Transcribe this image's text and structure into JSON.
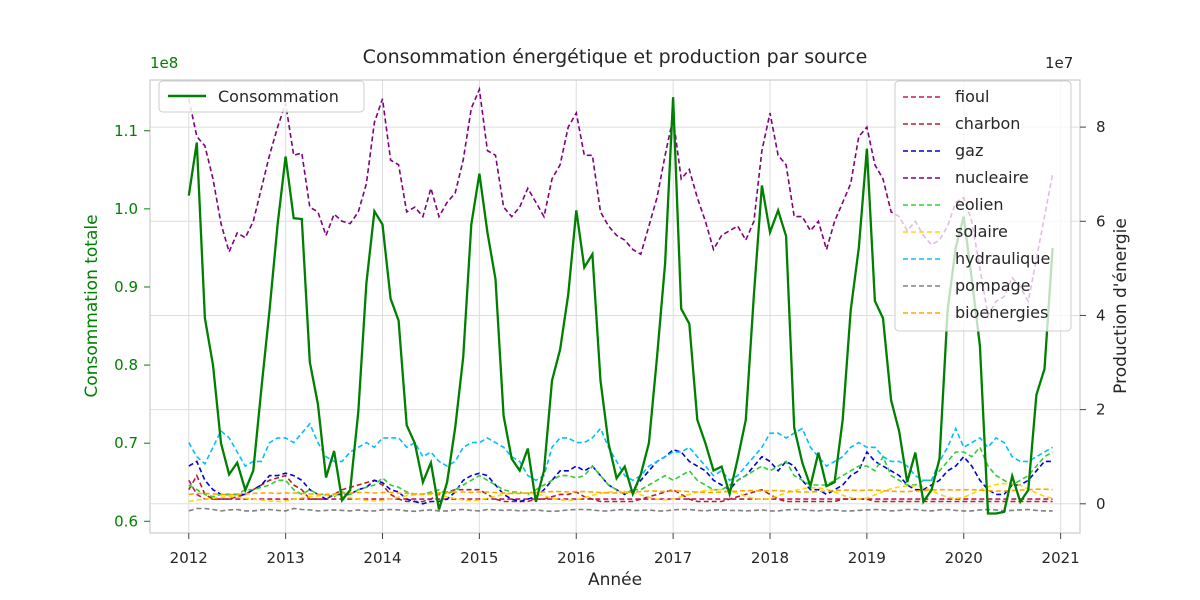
{
  "chart_data": {
    "type": "line",
    "title": "Consommation énergétique et production par source",
    "xlabel": "Année",
    "ylabel_left": "Consommation totale",
    "ylabel_right": "Production d'énergie",
    "left_multiplier": "1e8",
    "right_multiplier": "1e7",
    "x_ticks": [
      "2012",
      "2013",
      "2014",
      "2015",
      "2016",
      "2017",
      "2018",
      "2019",
      "2020",
      "2021"
    ],
    "left_ticks": [
      "0.6",
      "0.7",
      "0.8",
      "0.9",
      "1.0",
      "1.1"
    ],
    "right_ticks": [
      "0",
      "2",
      "4",
      "6",
      "8"
    ],
    "xlim": [
      2011.6,
      2021.2
    ],
    "ylim_left": [
      0.585,
      1.165
    ],
    "ylim_right": [
      -0.62,
      9.0
    ],
    "grid": true,
    "legend_left": {
      "position": "top-left",
      "entries": [
        "Consommation"
      ]
    },
    "legend_right": {
      "position": "top-right",
      "entries": [
        "fioul",
        "charbon",
        "gaz",
        "nucleaire",
        "eolien",
        "solaire",
        "hydraulique",
        "pompage",
        "bioenergies"
      ]
    },
    "colors": {
      "Consommation": "#008000",
      "fioul": "#c2185b",
      "charbon": "#b22222",
      "gaz": "#0000dd",
      "nucleaire": "#800080",
      "eolien": "#32cd32",
      "solaire": "#ffd700",
      "hydraulique": "#00bfff",
      "pompage": "#808080",
      "bioenergies": "#ffa500",
      "left_axis_text": "#008000"
    },
    "consommation": [
      1.017,
      1.085,
      0.86,
      0.8,
      0.7,
      0.66,
      0.675,
      0.64,
      0.665,
      0.77,
      0.87,
      0.98,
      1.067,
      0.988,
      0.987,
      0.804,
      0.75,
      0.656,
      0.69,
      0.627,
      0.64,
      0.74,
      0.905,
      0.997,
      0.98,
      0.885,
      0.857,
      0.723,
      0.7,
      0.65,
      0.675,
      0.615,
      0.65,
      0.72,
      0.81,
      0.98,
      1.045,
      0.97,
      0.91,
      0.735,
      0.68,
      0.665,
      0.693,
      0.625,
      0.665,
      0.78,
      0.82,
      0.89,
      0.998,
      0.925,
      0.942,
      0.78,
      0.7,
      0.655,
      0.67,
      0.635,
      0.66,
      0.7,
      0.81,
      0.93,
      1.143,
      0.872,
      0.853,
      0.73,
      0.7,
      0.665,
      0.67,
      0.635,
      0.68,
      0.73,
      0.89,
      1.03,
      0.97,
      0.998,
      0.965,
      0.72,
      0.675,
      0.645,
      0.688,
      0.645,
      0.65,
      0.73,
      0.87,
      0.95,
      1.077,
      0.882,
      0.86,
      0.755,
      0.715,
      0.65,
      0.688,
      0.625,
      0.64,
      0.68,
      0.87,
      0.95,
      0.99,
      0.91,
      0.825,
      0.61,
      0.61,
      0.612,
      0.658,
      0.625,
      0.64,
      0.762,
      0.795,
      0.95
    ],
    "nucleaire": [
      8.6,
      7.8,
      7.6,
      6.9,
      5.95,
      5.35,
      5.75,
      5.65,
      6.0,
      6.7,
      7.4,
      8.0,
      8.5,
      7.4,
      7.45,
      6.3,
      6.2,
      5.7,
      6.15,
      6.0,
      5.95,
      6.2,
      6.8,
      8.1,
      8.6,
      7.3,
      7.2,
      6.2,
      6.3,
      6.1,
      6.7,
      6.1,
      6.4,
      6.6,
      7.3,
      8.4,
      8.8,
      7.5,
      7.4,
      6.3,
      6.1,
      6.3,
      6.7,
      6.4,
      6.1,
      6.9,
      7.2,
      8.0,
      8.3,
      7.4,
      7.4,
      6.2,
      5.9,
      5.7,
      5.6,
      5.4,
      5.3,
      5.9,
      6.5,
      7.4,
      8.2,
      6.9,
      7.1,
      6.5,
      6.0,
      5.4,
      5.7,
      5.8,
      5.9,
      5.6,
      6.0,
      7.5,
      8.3,
      7.4,
      7.2,
      6.1,
      6.1,
      5.8,
      6.0,
      5.4,
      6.0,
      6.4,
      6.8,
      7.8,
      8.0,
      7.2,
      6.9,
      6.2,
      6.1,
      5.8,
      6.0,
      5.7,
      5.5,
      5.6,
      5.9,
      6.4,
      6.5,
      6.0,
      5.0,
      4.0,
      4.3,
      4.4,
      4.8,
      4.6,
      4.3,
      5.2,
      6.1,
      7.0
    ],
    "hydraulique": [
      1.3,
      1.0,
      0.85,
      1.2,
      1.55,
      1.4,
      1.1,
      0.8,
      0.9,
      0.9,
      1.3,
      1.4,
      1.4,
      1.3,
      1.5,
      1.7,
      1.3,
      1.0,
      0.9,
      0.9,
      1.1,
      1.2,
      1.3,
      1.2,
      1.4,
      1.4,
      1.4,
      1.2,
      1.3,
      1.0,
      1.1,
      0.9,
      0.8,
      0.9,
      1.2,
      1.3,
      1.3,
      1.4,
      1.3,
      1.2,
      1.0,
      0.9,
      0.6,
      0.5,
      0.6,
      1.2,
      1.4,
      1.4,
      1.3,
      1.3,
      1.4,
      1.6,
      1.2,
      0.9,
      0.6,
      0.5,
      0.6,
      0.8,
      0.9,
      1.0,
      1.1,
      1.1,
      1.2,
      1.0,
      0.8,
      0.6,
      0.7,
      0.5,
      0.6,
      0.8,
      1.0,
      1.2,
      1.5,
      1.5,
      1.4,
      1.5,
      1.6,
      1.2,
      1.0,
      0.8,
      0.9,
      1.0,
      1.2,
      1.3,
      1.2,
      1.2,
      1.0,
      0.9,
      0.9,
      0.8,
      0.6,
      0.5,
      0.5,
      0.9,
      1.2,
      1.6,
      1.2,
      1.3,
      1.4,
      1.2,
      1.4,
      1.3,
      1.0,
      0.9,
      0.9,
      1.0,
      1.1,
      1.2
    ],
    "gaz": [
      0.8,
      0.9,
      0.5,
      0.3,
      0.2,
      0.2,
      0.2,
      0.2,
      0.3,
      0.4,
      0.6,
      0.6,
      0.65,
      0.6,
      0.5,
      0.3,
      0.2,
      0.1,
      0.2,
      0.2,
      0.2,
      0.3,
      0.35,
      0.5,
      0.45,
      0.3,
      0.25,
      0.1,
      0.05,
      0.0,
      0.05,
      0.05,
      0.1,
      0.25,
      0.5,
      0.6,
      0.65,
      0.6,
      0.4,
      0.2,
      0.1,
      0.05,
      0.1,
      0.15,
      0.3,
      0.5,
      0.7,
      0.7,
      0.8,
      0.7,
      0.8,
      0.6,
      0.4,
      0.3,
      0.2,
      0.3,
      0.5,
      0.7,
      0.9,
      1.0,
      1.15,
      1.1,
      0.9,
      0.8,
      0.7,
      0.5,
      0.4,
      0.3,
      0.5,
      0.6,
      0.8,
      1.0,
      0.9,
      0.7,
      0.9,
      0.8,
      0.5,
      0.3,
      0.3,
      0.2,
      0.3,
      0.4,
      0.6,
      0.7,
      1.1,
      0.9,
      0.8,
      0.7,
      0.6,
      0.4,
      0.3,
      0.3,
      0.4,
      0.5,
      0.7,
      0.8,
      1.0,
      0.8,
      0.5,
      0.3,
      0.2,
      0.2,
      0.4,
      0.4,
      0.5,
      0.7,
      0.9,
      0.9
    ],
    "eolien": [
      0.4,
      0.3,
      0.2,
      0.15,
      0.2,
      0.2,
      0.2,
      0.3,
      0.3,
      0.35,
      0.4,
      0.5,
      0.5,
      0.3,
      0.2,
      0.3,
      0.2,
      0.2,
      0.15,
      0.25,
      0.2,
      0.3,
      0.35,
      0.4,
      0.55,
      0.4,
      0.35,
      0.25,
      0.2,
      0.2,
      0.25,
      0.3,
      0.2,
      0.3,
      0.4,
      0.5,
      0.6,
      0.5,
      0.4,
      0.3,
      0.25,
      0.25,
      0.2,
      0.3,
      0.4,
      0.5,
      0.6,
      0.6,
      0.55,
      0.6,
      0.8,
      0.6,
      0.4,
      0.3,
      0.2,
      0.3,
      0.3,
      0.4,
      0.5,
      0.6,
      0.5,
      0.6,
      0.7,
      0.5,
      0.4,
      0.3,
      0.3,
      0.4,
      0.5,
      0.6,
      0.7,
      0.8,
      0.7,
      0.8,
      0.9,
      0.6,
      0.5,
      0.4,
      0.4,
      0.4,
      0.5,
      0.6,
      0.7,
      0.8,
      0.8,
      0.7,
      1.0,
      0.6,
      0.5,
      0.4,
      0.4,
      0.5,
      0.5,
      0.7,
      0.9,
      1.1,
      1.1,
      1.0,
      1.2,
      0.8,
      0.6,
      0.5,
      0.4,
      0.5,
      0.6,
      0.8,
      1.0,
      1.1
    ],
    "fioul": [
      0.5,
      0.2,
      0.1,
      0.1,
      0.1,
      0.1,
      0.1,
      0.1,
      0.1,
      0.1,
      0.1,
      0.1,
      0.1,
      0.1,
      0.1,
      0.1,
      0.1,
      0.1,
      0.1,
      0.1,
      0.1,
      0.1,
      0.1,
      0.1,
      0.1,
      0.1,
      0.1,
      0.1,
      0.1,
      0.1,
      0.1,
      0.1,
      0.1,
      0.1,
      0.1,
      0.1,
      0.1,
      0.1,
      0.1,
      0.1,
      0.1,
      0.1,
      0.1,
      0.1,
      0.1,
      0.1,
      0.1,
      0.1,
      0.1,
      0.1,
      0.1,
      0.1,
      0.1,
      0.1,
      0.1,
      0.1,
      0.1,
      0.1,
      0.1,
      0.1,
      0.1,
      0.1,
      0.1,
      0.1,
      0.1,
      0.1,
      0.1,
      0.1,
      0.1,
      0.1,
      0.1,
      0.1,
      0.1,
      0.1,
      0.1,
      0.1,
      0.1,
      0.1,
      0.1,
      0.1,
      0.1,
      0.1,
      0.1,
      0.1,
      0.1,
      0.1,
      0.1,
      0.1,
      0.1,
      0.1,
      0.1,
      0.1,
      0.1,
      0.1,
      0.1,
      0.1,
      0.1,
      0.1,
      0.1,
      0.1,
      0.1,
      0.1,
      0.1,
      0.1,
      0.1,
      0.1,
      0.1,
      0.1
    ],
    "charbon": [
      0.3,
      0.6,
      0.2,
      0.1,
      0.1,
      0.1,
      0.15,
      0.2,
      0.3,
      0.4,
      0.5,
      0.55,
      0.6,
      0.4,
      0.3,
      0.1,
      0.1,
      0.1,
      0.2,
      0.3,
      0.35,
      0.4,
      0.45,
      0.5,
      0.4,
      0.2,
      0.1,
      0.05,
      0.05,
      0.05,
      0.1,
      0.2,
      0.25,
      0.3,
      0.3,
      0.3,
      0.3,
      0.2,
      0.1,
      0.05,
      0.05,
      0.05,
      0.05,
      0.1,
      0.1,
      0.15,
      0.2,
      0.2,
      0.25,
      0.15,
      0.1,
      0.05,
      0.05,
      0.05,
      0.05,
      0.05,
      0.1,
      0.15,
      0.2,
      0.25,
      0.3,
      0.2,
      0.1,
      0.05,
      0.05,
      0.05,
      0.05,
      0.1,
      0.15,
      0.2,
      0.25,
      0.3,
      0.2,
      0.1,
      0.05,
      0.05,
      0.05,
      0.05,
      0.05,
      0.05,
      0.05,
      0.1,
      0.1,
      0.1,
      0.1,
      0.05,
      0.05,
      0.05,
      0.05,
      0.05,
      0.05,
      0.05,
      0.05,
      0.05,
      0.05,
      0.05,
      0.05,
      0.05,
      0.05,
      0.05,
      0.05,
      0.05,
      0.05,
      0.05,
      0.05,
      0.05,
      0.05,
      0.05
    ],
    "solaire": [
      0.05,
      0.08,
      0.1,
      0.12,
      0.14,
      0.15,
      0.14,
      0.12,
      0.1,
      0.08,
      0.06,
      0.05,
      0.06,
      0.1,
      0.13,
      0.15,
      0.17,
      0.18,
      0.18,
      0.16,
      0.13,
      0.1,
      0.07,
      0.06,
      0.07,
      0.1,
      0.14,
      0.17,
      0.19,
      0.2,
      0.2,
      0.18,
      0.15,
      0.11,
      0.08,
      0.06,
      0.08,
      0.12,
      0.16,
      0.2,
      0.22,
      0.23,
      0.23,
      0.21,
      0.17,
      0.12,
      0.09,
      0.07,
      0.09,
      0.13,
      0.18,
      0.22,
      0.25,
      0.26,
      0.26,
      0.24,
      0.19,
      0.14,
      0.1,
      0.08,
      0.1,
      0.15,
      0.2,
      0.25,
      0.28,
      0.3,
      0.3,
      0.27,
      0.22,
      0.16,
      0.11,
      0.09,
      0.11,
      0.17,
      0.23,
      0.28,
      0.32,
      0.34,
      0.34,
      0.31,
      0.25,
      0.18,
      0.13,
      0.1,
      0.12,
      0.19,
      0.26,
      0.32,
      0.36,
      0.38,
      0.38,
      0.35,
      0.28,
      0.2,
      0.14,
      0.11,
      0.14,
      0.21,
      0.29,
      0.36,
      0.41,
      0.43,
      0.43,
      0.39,
      0.31,
      0.23,
      0.16,
      0.12
    ],
    "pompage": [
      -0.15,
      -0.1,
      -0.1,
      -0.12,
      -0.15,
      -0.13,
      -0.12,
      -0.15,
      -0.15,
      -0.13,
      -0.12,
      -0.14,
      -0.15,
      -0.1,
      -0.12,
      -0.13,
      -0.15,
      -0.14,
      -0.13,
      -0.14,
      -0.15,
      -0.13,
      -0.15,
      -0.15,
      -0.13,
      -0.12,
      -0.13,
      -0.15,
      -0.16,
      -0.14,
      -0.13,
      -0.15,
      -0.15,
      -0.13,
      -0.12,
      -0.14,
      -0.15,
      -0.12,
      -0.13,
      -0.14,
      -0.13,
      -0.15,
      -0.14,
      -0.13,
      -0.15,
      -0.16,
      -0.15,
      -0.13,
      -0.12,
      -0.12,
      -0.13,
      -0.15,
      -0.15,
      -0.13,
      -0.12,
      -0.14,
      -0.14,
      -0.13,
      -0.15,
      -0.15,
      -0.13,
      -0.12,
      -0.12,
      -0.14,
      -0.15,
      -0.13,
      -0.13,
      -0.14,
      -0.14,
      -0.15,
      -0.14,
      -0.13,
      -0.15,
      -0.15,
      -0.13,
      -0.12,
      -0.12,
      -0.14,
      -0.15,
      -0.13,
      -0.13,
      -0.15,
      -0.15,
      -0.14,
      -0.13,
      -0.12,
      -0.13,
      -0.15,
      -0.14,
      -0.12,
      -0.12,
      -0.14,
      -0.15,
      -0.13,
      -0.12,
      -0.14,
      -0.15,
      -0.15,
      -0.13,
      -0.12,
      -0.13,
      -0.15,
      -0.14,
      -0.13,
      -0.12,
      -0.14,
      -0.15,
      -0.15
    ],
    "bioenergies": [
      0.2,
      0.22,
      0.22,
      0.21,
      0.2,
      0.19,
      0.2,
      0.21,
      0.22,
      0.23,
      0.23,
      0.22,
      0.23,
      0.23,
      0.22,
      0.21,
      0.2,
      0.2,
      0.21,
      0.22,
      0.23,
      0.24,
      0.24,
      0.23,
      0.24,
      0.24,
      0.23,
      0.22,
      0.21,
      0.21,
      0.22,
      0.23,
      0.24,
      0.25,
      0.25,
      0.24,
      0.25,
      0.25,
      0.24,
      0.23,
      0.22,
      0.22,
      0.23,
      0.24,
      0.25,
      0.26,
      0.26,
      0.25,
      0.26,
      0.26,
      0.25,
      0.24,
      0.23,
      0.23,
      0.24,
      0.25,
      0.26,
      0.27,
      0.27,
      0.26,
      0.27,
      0.27,
      0.26,
      0.25,
      0.24,
      0.24,
      0.25,
      0.26,
      0.27,
      0.28,
      0.28,
      0.27,
      0.28,
      0.28,
      0.27,
      0.26,
      0.25,
      0.25,
      0.26,
      0.27,
      0.28,
      0.29,
      0.29,
      0.28,
      0.29,
      0.29,
      0.28,
      0.27,
      0.26,
      0.26,
      0.27,
      0.28,
      0.29,
      0.3,
      0.3,
      0.29,
      0.3,
      0.3,
      0.29,
      0.28,
      0.27,
      0.27,
      0.28,
      0.29,
      0.3,
      0.31,
      0.31,
      0.3
    ]
  }
}
